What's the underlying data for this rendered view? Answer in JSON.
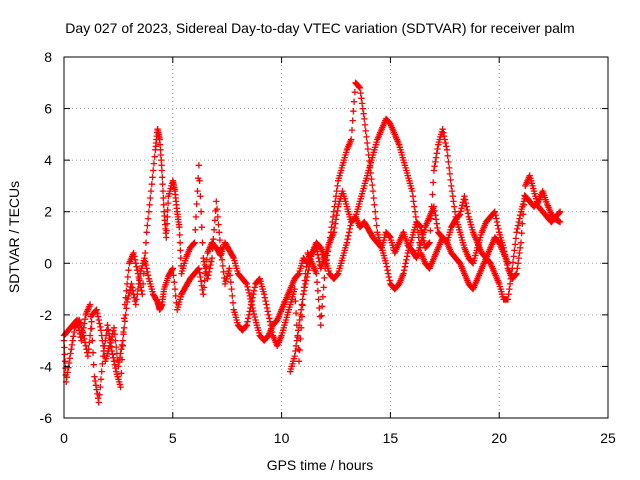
{
  "chart_data": {
    "type": "scatter",
    "title": "Day 027 of 2023, Sidereal Day-to-day VTEC variation (SDTVAR) for receiver palm",
    "xlabel": "GPS time / hours",
    "ylabel": "SDTVAR / TECUs",
    "xlim": [
      0,
      25
    ],
    "ylim": [
      -6,
      8
    ],
    "xticks": [
      "0",
      "5",
      "10",
      "15",
      "20",
      "25"
    ],
    "yticks": [
      "-6",
      "-4",
      "-2",
      "0",
      "2",
      "4",
      "6",
      "8"
    ],
    "grid": true,
    "marker": "+",
    "color": "#ff0000",
    "series": [
      {
        "x": [
          0.0,
          0.1,
          0.3,
          0.5,
          0.7,
          0.9,
          1.1,
          1.3,
          1.5,
          1.7,
          1.9,
          2.1,
          2.3,
          2.5,
          2.7,
          2.9,
          3.1,
          3.3,
          3.5,
          3.7,
          3.9,
          4.1,
          4.3,
          4.4,
          4.5,
          4.6,
          4.8,
          5.0,
          5.2,
          5.4,
          5.6,
          5.8,
          6.0,
          6.2,
          6.4,
          6.6,
          6.8,
          7.0,
          7.2,
          7.4,
          7.6,
          7.8,
          8.0,
          8.2,
          8.4,
          8.6,
          8.8,
          9.0,
          9.2,
          9.4,
          9.6,
          9.8,
          10.0,
          10.2,
          10.4,
          10.6,
          10.8,
          11.0,
          11.2,
          11.4,
          11.6,
          11.8,
          12.0,
          12.2,
          12.4,
          12.6,
          12.8,
          13.0,
          13.2,
          13.4,
          13.6,
          13.8,
          14.0,
          14.2,
          14.4,
          14.6,
          14.8,
          15.0,
          15.2,
          15.4,
          15.6,
          15.8,
          16.0,
          16.2,
          16.4,
          16.6,
          16.8,
          17.0,
          17.2,
          17.4,
          17.6,
          17.8,
          18.0,
          18.2,
          18.4,
          18.6,
          18.8,
          19.0,
          19.2,
          19.4,
          19.6,
          19.8,
          20.0,
          20.2,
          20.4,
          20.6,
          20.8,
          21.0,
          21.2,
          21.4,
          21.6,
          21.8,
          22.0,
          22.2,
          22.4,
          22.6,
          22.8
        ],
        "y": [
          -3.0,
          -4.6,
          -3.5,
          -2.5,
          -2.2,
          -2.8,
          -3.6,
          -2.0,
          -1.8,
          -2.6,
          -3.8,
          -3.2,
          -2.5,
          -4.0,
          -3.0,
          -1.5,
          -0.8,
          -1.6,
          -0.4,
          0.2,
          -0.6,
          -1.2,
          -1.5,
          -1.8,
          -1.6,
          -1.0,
          -0.5,
          -0.2,
          -1.8,
          -1.2,
          -0.9,
          -0.6,
          -0.4,
          -0.2,
          -1.2,
          0.4,
          0.8,
          0.6,
          0.3,
          0.8,
          0.5,
          0.2,
          -0.4,
          -0.6,
          -0.8,
          -1.5,
          -2.2,
          -2.8,
          -3.0,
          -2.8,
          -2.4,
          -2.2,
          -1.8,
          -1.4,
          -1.0,
          -0.6,
          -0.4,
          0.2,
          0.0,
          0.4,
          0.6,
          -0.2,
          0.3,
          0.8,
          1.2,
          2.2,
          2.8,
          2.2,
          1.6,
          1.8,
          1.4,
          1.6,
          1.3,
          1.0,
          0.8,
          0.6,
          1.2,
          1.0,
          0.4,
          0.8,
          1.2,
          0.7,
          0.5,
          0.2,
          0.8,
          1.4,
          1.8,
          2.2,
          1.2,
          1.0,
          0.8,
          1.4,
          1.7,
          1.9,
          2.6,
          1.8,
          1.2,
          0.8,
          0.4,
          0.2,
          0.0,
          -0.4,
          -0.8,
          -1.4,
          -1.4,
          -0.2,
          1.2,
          2.0,
          2.6,
          2.4,
          2.2,
          2.4,
          2.8,
          2.3,
          1.9,
          1.7,
          1.6
        ]
      },
      {
        "x": [
          0.0,
          0.2,
          0.4,
          0.6,
          0.8,
          1.0,
          1.2,
          1.4,
          1.6,
          1.8,
          2.0,
          2.2,
          2.4,
          2.6,
          2.8,
          3.0,
          3.2,
          3.4,
          3.6,
          3.8,
          4.0,
          4.2,
          4.3,
          4.4,
          4.5,
          4.6,
          4.7,
          4.8,
          5.0,
          5.1,
          5.2,
          5.3,
          5.4,
          5.6,
          5.8,
          6.0,
          6.2,
          6.4,
          6.6,
          6.8,
          7.0,
          7.2,
          7.4,
          7.6,
          7.8,
          8.0,
          8.2,
          8.4,
          8.6,
          8.8,
          9.0,
          9.2,
          9.4,
          9.6,
          9.8,
          10.0,
          10.2,
          10.4,
          10.6,
          10.8,
          11.0,
          11.2,
          11.4,
          11.6,
          11.8,
          12.0,
          12.2,
          12.4,
          12.6,
          12.8,
          13.0,
          13.2,
          13.4,
          13.6,
          13.8,
          14.0,
          14.2,
          14.4,
          14.6,
          14.8,
          15.0,
          15.2,
          15.4,
          15.6,
          15.8,
          16.0,
          16.2,
          16.4,
          16.6,
          16.8,
          17.0,
          17.2,
          17.4,
          17.6,
          17.8,
          18.0,
          18.2,
          18.4,
          18.6,
          18.8,
          19.0,
          19.2,
          19.4,
          19.6,
          19.8,
          20.0,
          20.2,
          20.4,
          20.6,
          20.8,
          21.0,
          21.2,
          21.4,
          21.6,
          21.8,
          22.0,
          22.2,
          22.4,
          22.6,
          22.8
        ],
        "y": [
          -2.8,
          -2.6,
          -2.4,
          -2.2,
          -3.0,
          -2.0,
          -1.6,
          -4.4,
          -5.4,
          -3.6,
          -2.4,
          -3.4,
          -4.2,
          -4.8,
          -1.6,
          0.0,
          0.4,
          -0.4,
          -1.2,
          1.2,
          2.8,
          4.4,
          5.2,
          4.8,
          3.6,
          2.0,
          1.0,
          2.6,
          3.2,
          2.8,
          2.0,
          1.4,
          -0.4,
          0.2,
          0.6,
          0.8,
          3.8,
          0.2,
          -0.6,
          0.2,
          2.4,
          0.6,
          -0.8,
          -0.2,
          -1.8,
          -2.4,
          -2.6,
          -2.4,
          -1.6,
          -0.8,
          -0.6,
          -1.2,
          -2.0,
          -2.8,
          -3.2,
          -2.8,
          -2.2,
          -1.6,
          -1.0,
          -3.8,
          -1.2,
          0.4,
          0.0,
          -0.4,
          -2.4,
          -0.2,
          0.8,
          2.0,
          3.2,
          3.8,
          4.4,
          4.8,
          7.0,
          6.8,
          5.6,
          4.2,
          2.8,
          1.2,
          0.6,
          0.0,
          -0.8,
          -1.0,
          -0.8,
          -0.4,
          0.4,
          1.0,
          1.6,
          1.4,
          0.6,
          0.8,
          3.6,
          4.6,
          5.2,
          4.4,
          3.0,
          1.8,
          1.2,
          0.6,
          0.2,
          0.0,
          0.6,
          1.2,
          1.6,
          1.8,
          2.0,
          1.2,
          0.6,
          -0.2,
          -0.6,
          -0.4,
          0.8,
          3.0,
          3.4,
          2.8,
          2.2,
          2.0,
          1.8,
          1.6,
          1.8,
          2.0
        ]
      },
      {
        "x": [
          10.4,
          10.6,
          10.8,
          11.0,
          11.2,
          11.4,
          11.6,
          11.8,
          12.0,
          12.2,
          12.4,
          12.6,
          12.8,
          13.0,
          13.2,
          13.4,
          13.6,
          13.8,
          14.0,
          14.2,
          14.4,
          14.6,
          14.8,
          15.0,
          15.2,
          15.4,
          15.6,
          15.8,
          16.0,
          16.2,
          16.4,
          16.6,
          16.8,
          17.0,
          17.2,
          17.4,
          17.6,
          17.8,
          18.0,
          18.2,
          18.4,
          18.6,
          18.8,
          19.0,
          19.2,
          19.4,
          19.6,
          19.8,
          20.0,
          20.2,
          20.4
        ],
        "y": [
          -4.2,
          -3.6,
          -2.4,
          -1.2,
          -0.4,
          0.4,
          0.8,
          0.6,
          0.2,
          -0.4,
          -0.6,
          -0.4,
          0.2,
          0.8,
          1.6,
          1.8,
          2.4,
          3.0,
          3.6,
          4.2,
          4.8,
          5.2,
          5.6,
          5.4,
          5.0,
          4.6,
          4.0,
          3.4,
          2.8,
          1.6,
          0.4,
          0.0,
          -0.2,
          0.2,
          0.6,
          1.0,
          0.8,
          0.4,
          0.2,
          0.0,
          -0.4,
          -0.8,
          -1.0,
          -0.6,
          -0.2,
          0.2,
          0.6,
          1.0,
          0.8,
          0.4,
          0.0
        ]
      }
    ]
  }
}
